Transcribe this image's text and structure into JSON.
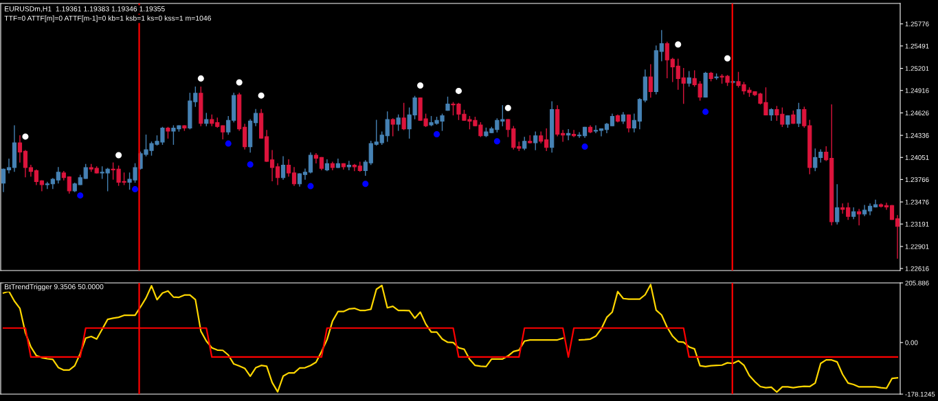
{
  "chart_data": [
    {
      "type": "candlestick",
      "title": "EURUSDm,H1  1.19361 1.19383 1.19346 1.19355",
      "subtitle": "TTF=0 ATTF[m]=0 ATTF[m-1]=0 kb=1 ksb=1 ks=0 kss=1 m=1046",
      "categories": [
        null,
        null,
        null,
        null,
        null,
        null,
        null,
        null,
        null,
        null,
        null,
        null,
        null,
        null,
        null,
        null,
        null,
        null,
        null,
        null,
        null,
        null,
        null,
        null,
        null,
        null,
        null,
        null,
        null,
        null,
        null,
        null,
        null,
        null,
        null,
        null,
        null,
        null,
        null,
        null,
        null,
        null,
        null,
        null,
        null,
        null,
        null,
        null,
        null,
        null,
        null,
        null,
        null,
        null,
        null,
        null,
        null,
        null,
        null,
        null,
        null,
        null,
        null,
        null,
        null,
        null,
        null,
        null,
        null,
        null,
        null,
        null,
        null,
        null,
        null,
        null,
        null,
        null,
        null,
        null,
        null,
        null,
        null,
        null,
        null,
        null,
        null,
        null,
        null,
        null,
        null,
        null,
        null,
        null,
        null,
        null,
        null,
        null,
        null,
        null,
        null,
        null,
        null,
        null,
        null,
        null,
        null,
        null,
        null,
        null,
        null,
        null,
        null,
        null,
        null,
        null,
        null,
        null,
        null,
        null,
        null,
        null,
        null,
        null,
        null,
        null,
        null,
        null,
        null,
        null,
        null,
        null,
        null,
        null,
        null,
        null,
        null,
        null,
        null,
        null,
        null,
        null,
        null,
        null,
        null,
        null,
        null,
        null,
        null,
        null,
        null,
        null,
        null,
        null,
        null,
        null,
        null,
        null,
        null,
        null,
        null,
        null,
        null,
        null
      ],
      "ohlc": [
        [
          1.2372,
          1.239,
          1.2361,
          1.239
        ],
        [
          1.2389,
          1.2403,
          1.2385,
          1.2392
        ],
        [
          1.2392,
          1.2446,
          1.2387,
          1.2424
        ],
        [
          1.2424,
          1.2433,
          1.2399,
          1.2412
        ],
        [
          1.2413,
          1.2414,
          1.238,
          1.2392
        ],
        [
          1.2392,
          1.2395,
          1.2381,
          1.2387
        ],
        [
          1.2388,
          1.2389,
          1.237,
          1.2374
        ],
        [
          1.2375,
          1.2375,
          1.2362,
          1.237
        ],
        [
          1.237,
          1.2373,
          1.2365,
          1.2371
        ],
        [
          1.2371,
          1.2378,
          1.2365,
          1.2377
        ],
        [
          1.2376,
          1.2392,
          1.2372,
          1.2386
        ],
        [
          1.2385,
          1.2387,
          1.2376,
          1.2379
        ],
        [
          1.238,
          1.238,
          1.2359,
          1.2362
        ],
        [
          1.2362,
          1.2372,
          1.2361,
          1.2371
        ],
        [
          1.237,
          1.2382,
          1.237,
          1.2379
        ],
        [
          1.2378,
          1.2396,
          1.2378,
          1.2392
        ],
        [
          1.2392,
          1.2396,
          1.2387,
          1.239
        ],
        [
          1.2391,
          1.2393,
          1.2385,
          1.2385
        ],
        [
          1.2385,
          1.2393,
          1.2378,
          1.2386
        ],
        [
          1.2385,
          1.2391,
          1.2362,
          1.239
        ],
        [
          1.239,
          1.2398,
          1.2377,
          1.2389
        ],
        [
          1.239,
          1.2394,
          1.2369,
          1.2373
        ],
        [
          1.2374,
          1.2385,
          1.237,
          1.2373
        ],
        [
          1.2373,
          1.2385,
          1.2364,
          1.2377
        ],
        [
          1.2376,
          1.2397,
          1.2373,
          1.2392
        ],
        [
          1.2391,
          1.2412,
          1.239,
          1.241
        ],
        [
          1.2409,
          1.2434,
          1.2407,
          1.2415
        ],
        [
          1.2414,
          1.2425,
          1.2408,
          1.2423
        ],
        [
          1.2422,
          1.2433,
          1.2421,
          1.2426
        ],
        [
          1.2425,
          1.2444,
          1.2422,
          1.2443
        ],
        [
          1.2443,
          1.2444,
          1.243,
          1.2439
        ],
        [
          1.2439,
          1.2446,
          1.2422,
          1.2443
        ],
        [
          1.2442,
          1.2446,
          1.2439,
          1.2446
        ],
        [
          1.2446,
          1.2446,
          1.244,
          1.2443
        ],
        [
          1.2443,
          1.2488,
          1.2442,
          1.2478
        ],
        [
          1.2477,
          1.2496,
          1.2471,
          1.2488
        ],
        [
          1.2488,
          1.2496,
          1.2446,
          1.2449
        ],
        [
          1.2449,
          1.2462,
          1.2446,
          1.2454
        ],
        [
          1.2454,
          1.246,
          1.2446,
          1.2449
        ],
        [
          1.245,
          1.2456,
          1.2444,
          1.2445
        ],
        [
          1.2446,
          1.2446,
          1.2429,
          1.2438
        ],
        [
          1.2438,
          1.2458,
          1.2435,
          1.2453
        ],
        [
          1.2453,
          1.2488,
          1.2451,
          1.2485
        ],
        [
          1.2486,
          1.2488,
          1.244,
          1.2442
        ],
        [
          1.2444,
          1.2448,
          1.2416,
          1.2419
        ],
        [
          1.2419,
          1.2454,
          1.2412,
          1.2452
        ],
        [
          1.245,
          1.2467,
          1.2446,
          1.2462
        ],
        [
          1.2462,
          1.2467,
          1.243,
          1.243
        ],
        [
          1.2432,
          1.244,
          1.24,
          1.24
        ],
        [
          1.2402,
          1.2414,
          1.2375,
          1.2392
        ],
        [
          1.2393,
          1.2397,
          1.237,
          1.2379
        ],
        [
          1.2379,
          1.2406,
          1.2377,
          1.2395
        ],
        [
          1.2395,
          1.2402,
          1.2381,
          1.2385
        ],
        [
          1.2385,
          1.2392,
          1.2369,
          1.2371
        ],
        [
          1.2371,
          1.2384,
          1.2368,
          1.2384
        ],
        [
          1.2383,
          1.239,
          1.2377,
          1.2386
        ],
        [
          1.2386,
          1.2411,
          1.2385,
          1.2408
        ],
        [
          1.2408,
          1.241,
          1.2398,
          1.2404
        ],
        [
          1.2405,
          1.2405,
          1.2389,
          1.2391
        ],
        [
          1.2389,
          1.2402,
          1.2388,
          1.2397
        ],
        [
          1.2397,
          1.2399,
          1.2389,
          1.2392
        ],
        [
          1.2392,
          1.2403,
          1.2392,
          1.2397
        ],
        [
          1.2397,
          1.2397,
          1.239,
          1.2393
        ],
        [
          1.2393,
          1.24,
          1.2389,
          1.2395
        ],
        [
          1.2395,
          1.2396,
          1.2388,
          1.2393
        ],
        [
          1.2394,
          1.2399,
          1.2387,
          1.2388
        ],
        [
          1.2388,
          1.2401,
          1.2382,
          1.2399
        ],
        [
          1.2398,
          1.2426,
          1.2396,
          1.2423
        ],
        [
          1.2422,
          1.2453,
          1.2421,
          1.2425
        ],
        [
          1.2424,
          1.2438,
          1.2422,
          1.2434
        ],
        [
          1.2433,
          1.2464,
          1.2426,
          1.2454
        ],
        [
          1.2454,
          1.2455,
          1.2433,
          1.2448
        ],
        [
          1.2448,
          1.246,
          1.244,
          1.2456
        ],
        [
          1.2456,
          1.2475,
          1.2441,
          1.2442
        ],
        [
          1.2442,
          1.2469,
          1.243,
          1.246
        ],
        [
          1.246,
          1.2484,
          1.2455,
          1.2482
        ],
        [
          1.2482,
          1.2482,
          1.2453,
          1.2453
        ],
        [
          1.2455,
          1.2461,
          1.2445,
          1.2446
        ],
        [
          1.2447,
          1.2458,
          1.2446,
          1.245
        ],
        [
          1.2449,
          1.2457,
          1.2448,
          1.2453
        ],
        [
          1.2452,
          1.2461,
          1.244,
          1.2459
        ],
        [
          1.2466,
          1.2483,
          1.2466,
          1.2474
        ],
        [
          1.2474,
          1.2476,
          1.246,
          1.2473
        ],
        [
          1.2474,
          1.2475,
          1.2454,
          1.2461
        ],
        [
          1.2461,
          1.2466,
          1.2453,
          1.2453
        ],
        [
          1.2454,
          1.2458,
          1.2442,
          1.2452
        ],
        [
          1.2453,
          1.2457,
          1.2446,
          1.2446
        ],
        [
          1.2447,
          1.245,
          1.2432,
          1.2433
        ],
        [
          1.2433,
          1.2443,
          1.2432,
          1.2438
        ],
        [
          1.2437,
          1.2444,
          1.2437,
          1.2442
        ],
        [
          1.2441,
          1.2455,
          1.2438,
          1.2453
        ],
        [
          1.2452,
          1.2472,
          1.2446,
          1.2454
        ],
        [
          1.2454,
          1.2454,
          1.2432,
          1.2441
        ],
        [
          1.2442,
          1.2445,
          1.2416,
          1.2418
        ],
        [
          1.2419,
          1.2425,
          1.2414,
          1.2417
        ],
        [
          1.2417,
          1.2431,
          1.2415,
          1.2426
        ],
        [
          1.2426,
          1.2433,
          1.2424,
          1.2424
        ],
        [
          1.2424,
          1.2438,
          1.2415,
          1.2433
        ],
        [
          1.2433,
          1.2438,
          1.2424,
          1.2426
        ],
        [
          1.2428,
          1.2442,
          1.2414,
          1.2418
        ],
        [
          1.2418,
          1.2477,
          1.2412,
          1.2467
        ],
        [
          1.2467,
          1.2472,
          1.2433,
          1.2435
        ],
        [
          1.2436,
          1.244,
          1.2426,
          1.2434
        ],
        [
          1.2434,
          1.2441,
          1.2428,
          1.2436
        ],
        [
          1.2435,
          1.244,
          1.2432,
          1.2433
        ],
        [
          1.2433,
          1.2437,
          1.2431,
          1.2434
        ],
        [
          1.2433,
          1.2444,
          1.2431,
          1.2444
        ],
        [
          1.2444,
          1.2446,
          1.2437,
          1.2438
        ],
        [
          1.2439,
          1.2446,
          1.2437,
          1.244
        ],
        [
          1.244,
          1.2442,
          1.2433,
          1.2442
        ],
        [
          1.2441,
          1.2449,
          1.2437,
          1.2448
        ],
        [
          1.2446,
          1.2461,
          1.2446,
          1.2458
        ],
        [
          1.2459,
          1.246,
          1.2451,
          1.2452
        ],
        [
          1.2452,
          1.2463,
          1.2449,
          1.246
        ],
        [
          1.246,
          1.246,
          1.2438,
          1.2443
        ],
        [
          1.2443,
          1.2461,
          1.2438,
          1.2453
        ],
        [
          1.2452,
          1.2481,
          1.2442,
          1.248
        ],
        [
          1.2479,
          1.2518,
          1.2477,
          1.2509
        ],
        [
          1.2509,
          1.2525,
          1.2483,
          1.249
        ],
        [
          1.249,
          1.2549,
          1.2487,
          1.2543
        ],
        [
          1.2542,
          1.2569,
          1.253,
          1.2552
        ],
        [
          1.2552,
          1.2554,
          1.2508,
          1.2531
        ],
        [
          1.2532,
          1.2533,
          1.2503,
          1.2522
        ],
        [
          1.2523,
          1.2532,
          1.2493,
          1.2507
        ],
        [
          1.2508,
          1.252,
          1.2475,
          1.2501
        ],
        [
          1.2501,
          1.2516,
          1.2497,
          1.2508
        ],
        [
          1.2507,
          1.2517,
          1.2497,
          1.2499
        ],
        [
          1.25,
          1.2503,
          1.2479,
          1.2483
        ],
        [
          1.2483,
          1.2515,
          1.2483,
          1.2514
        ],
        [
          1.2514,
          1.2515,
          1.2504,
          1.2507
        ],
        [
          1.2508,
          1.2513,
          1.2506,
          1.2509
        ],
        [
          1.251,
          1.2512,
          1.2501,
          1.2509
        ],
        [
          1.251,
          1.2511,
          1.2498,
          1.2502
        ],
        [
          1.2502,
          1.2504,
          1.2501,
          1.2503
        ],
        [
          1.2503,
          1.2515,
          1.2496,
          1.2498
        ],
        [
          1.2499,
          1.2502,
          1.2487,
          1.2491
        ],
        [
          1.2492,
          1.2495,
          1.2484,
          1.2489
        ],
        [
          1.249,
          1.249,
          1.2485,
          1.2486
        ],
        [
          1.2487,
          1.2488,
          1.2474,
          1.2475
        ],
        [
          1.2476,
          1.2495,
          1.246,
          1.246
        ],
        [
          1.246,
          1.2468,
          1.2453,
          1.2467
        ],
        [
          1.2467,
          1.2471,
          1.2453,
          1.246
        ],
        [
          1.2461,
          1.2469,
          1.2445,
          1.2448
        ],
        [
          1.2448,
          1.2459,
          1.2444,
          1.2459
        ],
        [
          1.246,
          1.2465,
          1.2449,
          1.2449
        ],
        [
          1.2449,
          1.2475,
          1.2445,
          1.2467
        ],
        [
          1.2467,
          1.247,
          1.2444,
          1.2446
        ],
        [
          1.2446,
          1.2453,
          1.2384,
          1.2392
        ],
        [
          1.2392,
          1.2416,
          1.2388,
          1.2405
        ],
        [
          1.2405,
          1.2415,
          1.2399,
          1.2412
        ],
        [
          1.2412,
          1.2419,
          1.2401,
          1.2402
        ],
        [
          1.2404,
          1.2473,
          1.2318,
          1.2322
        ],
        [
          1.2322,
          1.237,
          1.2319,
          1.234
        ],
        [
          1.234,
          1.2345,
          1.2333,
          1.2338
        ],
        [
          1.234,
          1.2346,
          1.2325,
          1.2329
        ],
        [
          1.2329,
          1.234,
          1.2326,
          1.2335
        ],
        [
          1.2335,
          1.2338,
          1.2318,
          1.2332
        ],
        [
          1.2332,
          1.2343,
          1.233,
          1.2337
        ],
        [
          1.2336,
          1.2345,
          1.2331,
          1.2342
        ],
        [
          1.2341,
          1.235,
          1.2341,
          1.2344
        ],
        [
          1.2344,
          1.2345,
          1.2341,
          1.2342
        ],
        [
          1.2343,
          1.2346,
          1.2338,
          1.2341
        ],
        [
          1.2343,
          1.2343,
          1.2325,
          1.2325
        ],
        [
          1.2326,
          1.233,
          1.2275,
          1.2316
        ]
      ],
      "colors": [
        "#4682b4",
        "#4682b4",
        "#4682b4",
        "#dc143c",
        "#dc143c",
        "#dc143c",
        "#dc143c",
        "#dc143c",
        "#4682b4",
        "#4682b4",
        "#4682b4",
        "#dc143c",
        "#dc143c",
        "#4682b4",
        "#4682b4",
        "#4682b4",
        "#dc143c",
        "#dc143c",
        "#4682b4",
        "#4682b4",
        "#dc143c",
        "#dc143c",
        "#dc143c",
        "#4682b4",
        "#4682b4",
        "#4682b4",
        "#4682b4",
        "#4682b4",
        "#4682b4",
        "#4682b4",
        "#dc143c",
        "#4682b4",
        "#4682b4",
        "#dc143c",
        "#4682b4",
        "#4682b4",
        "#dc143c",
        "#4682b4",
        "#dc143c",
        "#dc143c",
        "#dc143c",
        "#4682b4",
        "#4682b4",
        "#dc143c",
        "#dc143c",
        "#4682b4",
        "#4682b4",
        "#dc143c",
        "#dc143c",
        "#dc143c",
        "#dc143c",
        "#4682b4",
        "#dc143c",
        "#dc143c",
        "#4682b4",
        "#4682b4",
        "#4682b4",
        "#dc143c",
        "#dc143c",
        "#4682b4",
        "#dc143c",
        "#4682b4",
        "#dc143c",
        "#4682b4",
        "#dc143c",
        "#dc143c",
        "#4682b4",
        "#4682b4",
        "#4682b4",
        "#4682b4",
        "#4682b4",
        "#dc143c",
        "#4682b4",
        "#dc143c",
        "#4682b4",
        "#4682b4",
        "#dc143c",
        "#dc143c",
        "#4682b4",
        "#4682b4",
        "#4682b4",
        "#4682b4",
        "#dc143c",
        "#dc143c",
        "#dc143c",
        "#dc143c",
        "#dc143c",
        "#dc143c",
        "#4682b4",
        "#4682b4",
        "#4682b4",
        "#4682b4",
        "#dc143c",
        "#dc143c",
        "#dc143c",
        "#4682b4",
        "#dc143c",
        "#4682b4",
        "#dc143c",
        "#dc143c",
        "#4682b4",
        "#dc143c",
        "#dc143c",
        "#4682b4",
        "#dc143c",
        "#4682b4",
        "#4682b4",
        "#dc143c",
        "#4682b4",
        "#4682b4",
        "#4682b4",
        "#4682b4",
        "#dc143c",
        "#4682b4",
        "#dc143c",
        "#4682b4",
        "#4682b4",
        "#4682b4",
        "#dc143c",
        "#4682b4",
        "#4682b4",
        "#dc143c",
        "#dc143c",
        "#dc143c",
        "#dc143c",
        "#4682b4",
        "#dc143c",
        "#dc143c",
        "#4682b4",
        "#dc143c",
        "#4682b4",
        "#dc143c",
        "#dc143c",
        "#4682b4",
        "#dc143c",
        "#dc143c",
        "#dc143c",
        "#dc143c",
        "#dc143c",
        "#dc143c",
        "#4682b4",
        "#dc143c",
        "#dc143c",
        "#4682b4",
        "#dc143c",
        "#4682b4",
        "#dc143c",
        "#dc143c",
        "#4682b4",
        "#4682b4",
        "#dc143c",
        "#dc143c",
        "#4682b4",
        "#dc143c",
        "#dc143c",
        "#4682b4",
        "#dc143c",
        "#4682b4",
        "#4682b4",
        "#4682b4",
        "#dc143c",
        "#dc143c",
        "#dc143c",
        "#dc143c"
      ],
      "marker": "circle",
      "series": [
        {
          "type": "scatter",
          "color": "#ffffff",
          "values": [
            null,
            null,
            null,
            null,
            1.2432,
            null,
            null,
            null,
            null,
            null,
            null,
            null,
            null,
            null,
            null,
            null,
            null,
            null,
            null,
            null,
            null,
            1.2408,
            null,
            null,
            null,
            null,
            null,
            null,
            null,
            null,
            null,
            null,
            null,
            null,
            null,
            null,
            1.2507,
            null,
            null,
            null,
            null,
            null,
            null,
            1.2502,
            null,
            null,
            null,
            1.2485,
            null,
            null,
            null,
            null,
            null,
            null,
            null,
            null,
            null,
            null,
            null,
            null,
            null,
            null,
            null,
            null,
            null,
            null,
            null,
            null,
            null,
            null,
            null,
            null,
            null,
            null,
            null,
            null,
            1.2498,
            null,
            null,
            null,
            null,
            null,
            null,
            1.2491,
            null,
            null,
            null,
            null,
            null,
            null,
            null,
            null,
            1.2469,
            null,
            null,
            null,
            null,
            null,
            null,
            null,
            null,
            null,
            null,
            null,
            null,
            null,
            null,
            null,
            null,
            null,
            null,
            null,
            null,
            null,
            null,
            null,
            null,
            null,
            null,
            null,
            null,
            null,
            null,
            1.2551,
            null,
            null,
            null,
            null,
            null,
            null,
            null,
            null,
            1.2533,
            null,
            null,
            null,
            null,
            null,
            null,
            null,
            null,
            null,
            null,
            null,
            null,
            null,
            null,
            null,
            null,
            null,
            null,
            null,
            null,
            null,
            null,
            null,
            null,
            null,
            null,
            null,
            null,
            null,
            null,
            null
          ]
        },
        {
          "type": "scatter",
          "color": "#0000ff",
          "values": [
            null,
            null,
            null,
            null,
            null,
            null,
            null,
            null,
            null,
            null,
            null,
            null,
            null,
            null,
            1.2356,
            null,
            null,
            null,
            null,
            null,
            null,
            null,
            null,
            null,
            1.2364,
            null,
            null,
            null,
            null,
            null,
            null,
            null,
            null,
            null,
            null,
            null,
            null,
            null,
            null,
            null,
            null,
            1.2423,
            null,
            null,
            null,
            1.2396,
            null,
            null,
            null,
            null,
            null,
            null,
            null,
            null,
            null,
            null,
            1.2368,
            null,
            null,
            null,
            null,
            null,
            null,
            null,
            null,
            null,
            1.2371,
            null,
            null,
            null,
            null,
            null,
            null,
            null,
            null,
            null,
            null,
            null,
            null,
            1.2435,
            null,
            null,
            null,
            null,
            null,
            null,
            null,
            null,
            null,
            null,
            1.2426,
            null,
            null,
            null,
            null,
            null,
            null,
            null,
            null,
            null,
            null,
            null,
            null,
            null,
            null,
            null,
            1.2419,
            null,
            null,
            null,
            null,
            null,
            null,
            null,
            null,
            null,
            null,
            null,
            null,
            null,
            null,
            null,
            null,
            null,
            null,
            null,
            null,
            null,
            1.2464,
            null,
            null,
            null,
            null,
            null,
            null,
            null,
            null,
            null,
            null,
            null,
            null,
            null,
            null,
            null,
            null,
            null,
            null,
            null,
            null,
            null,
            null,
            null,
            null,
            null,
            null,
            null,
            null,
            null,
            null,
            null,
            null,
            null,
            null,
            null
          ]
        }
      ],
      "ylim": [
        1.2259,
        1.2604
      ],
      "yticks": [
        1.22616,
        1.22901,
        1.23191,
        1.23476,
        1.23766,
        1.24051,
        1.24336,
        1.24626,
        1.24916,
        1.25201,
        1.25491,
        1.25776
      ],
      "tick_labels": "y"
    },
    {
      "type": "line",
      "title": "BtTrendTrigger 9.3506 50.0000",
      "categories": [
        null,
        null,
        null,
        null,
        null,
        null,
        null,
        null,
        null,
        null,
        null,
        null,
        null,
        null,
        null,
        null,
        null,
        null,
        null,
        null,
        null,
        null,
        null,
        null,
        null,
        null,
        null,
        null,
        null,
        null,
        null,
        null,
        null,
        null,
        null,
        null,
        null,
        null,
        null,
        null,
        null,
        null,
        null,
        null,
        null,
        null,
        null,
        null,
        null,
        null,
        null,
        null,
        null,
        null,
        null,
        null,
        null,
        null,
        null,
        null,
        null,
        null,
        null,
        null,
        null,
        null,
        null,
        null,
        null,
        null,
        null,
        null,
        null,
        null,
        null,
        null,
        null,
        null,
        null,
        null,
        null,
        null,
        null,
        null,
        null,
        null,
        null,
        null,
        null,
        null,
        null,
        null,
        null,
        null,
        null,
        null,
        null,
        null,
        null,
        null,
        null,
        null,
        null,
        null,
        null,
        null,
        null,
        null,
        null,
        null,
        null,
        null,
        null,
        null,
        null,
        null,
        null,
        null,
        null,
        null,
        null,
        null,
        null,
        null,
        null,
        null,
        null,
        null,
        null,
        null,
        null,
        null,
        null,
        null,
        null,
        null,
        null,
        null,
        null,
        null,
        null,
        null,
        null,
        null,
        null,
        null,
        null,
        null,
        null,
        null,
        null,
        null,
        null,
        null,
        null,
        null,
        null,
        null,
        null,
        null,
        null,
        null,
        null,
        null
      ],
      "series": [
        {
          "color": "#ffd700",
          "values": [
            171,
            177,
            143,
            118,
            34,
            -15,
            -45,
            -52,
            -56,
            -58,
            -86,
            -95,
            -95,
            -80,
            -38,
            15,
            21,
            12,
            46,
            80,
            84,
            87,
            94,
            94,
            94,
            123,
            154,
            196,
            148,
            171,
            178,
            157,
            156,
            164,
            164,
            148,
            39,
            5,
            -18,
            -26,
            -27,
            -43,
            -74,
            -81,
            -89,
            -116,
            -87,
            -79,
            -82,
            -138,
            -170,
            -116,
            -105,
            -105,
            -88,
            -87,
            -79,
            -68,
            -31,
            10,
            74,
            107,
            107,
            116,
            118,
            111,
            111,
            115,
            184,
            197,
            120,
            125,
            111,
            111,
            110,
            84,
            105,
            64,
            36,
            36,
            12,
            1,
            0,
            -18,
            -23,
            -58,
            -79,
            -82,
            -83,
            -57,
            -57,
            -57,
            -46,
            -31,
            -26,
            5,
            9,
            9,
            9,
            9,
            9,
            9,
            15,
            null,
            null,
            9,
            10,
            12,
            22,
            47,
            87,
            105,
            176,
            152,
            150,
            150,
            150,
            165,
            200,
            112,
            95,
            53,
            22,
            3,
            1,
            -15,
            -22,
            -80,
            -83,
            -80,
            -79,
            -78,
            -70,
            -72,
            -63,
            -78,
            -114,
            -135,
            -152,
            -156,
            -154,
            -171,
            -153,
            -153,
            -156,
            -153,
            -151,
            -152,
            -140,
            -72,
            -60,
            -60,
            -67,
            -110,
            -140,
            -145,
            -153,
            -153,
            -153,
            -153,
            -156,
            -158,
            -124,
            -122
          ]
        },
        {
          "color": "#ff0000",
          "values": [
            50,
            50,
            50,
            50,
            50,
            -50,
            -50,
            -50,
            -50,
            -50,
            -50,
            -50,
            -50,
            -50,
            -50,
            50,
            50,
            50,
            50,
            50,
            50,
            50,
            50,
            50,
            50,
            50,
            50,
            50,
            50,
            50,
            50,
            50,
            50,
            50,
            50,
            50,
            50,
            50,
            -50,
            -50,
            -50,
            -50,
            -50,
            -50,
            -50,
            -50,
            -50,
            -50,
            -50,
            -50,
            -50,
            -50,
            -50,
            -50,
            -50,
            -50,
            -50,
            -50,
            -50,
            50,
            50,
            50,
            50,
            50,
            50,
            50,
            50,
            50,
            50,
            50,
            50,
            50,
            50,
            50,
            50,
            50,
            50,
            50,
            50,
            50,
            50,
            50,
            50,
            -50,
            -50,
            -50,
            -50,
            -50,
            -50,
            -50,
            -50,
            -50,
            -50,
            -50,
            -50,
            50,
            50,
            50,
            50,
            50,
            50,
            50,
            50,
            -50,
            50,
            50,
            50,
            50,
            50,
            50,
            50,
            50,
            50,
            50,
            50,
            50,
            50,
            50,
            50,
            50,
            50,
            50,
            50,
            50,
            50,
            -50,
            -50,
            -50,
            -50,
            -50,
            -50,
            -50,
            -50,
            -50,
            -50,
            -50,
            -50,
            -50,
            -50,
            -50,
            -50,
            -50,
            -50,
            -50,
            -50,
            -50,
            -50,
            -50,
            -50,
            -50,
            -50,
            -50,
            -50,
            -50,
            -50,
            -50,
            -50,
            -50,
            -50,
            -50,
            -50,
            -50,
            -50,
            -50
          ]
        }
      ],
      "ylim": [
        -178.1245,
        205.886
      ],
      "yticks": [
        -178.1245,
        {
          "value": 0,
          "label": "0.00"
        },
        205.886
      ],
      "tick_labels": "y"
    }
  ]
}
